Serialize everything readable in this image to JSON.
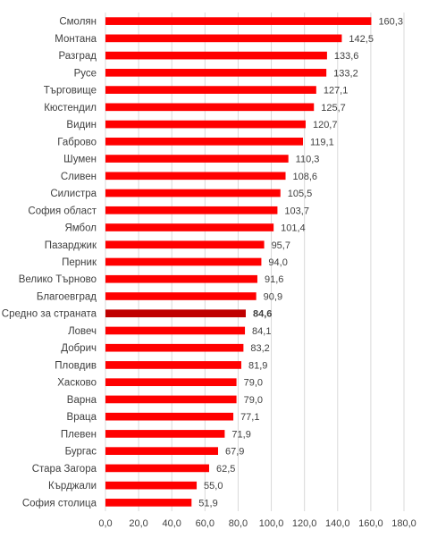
{
  "chart_data": {
    "type": "bar",
    "orientation": "horizontal",
    "categories": [
      "Смолян",
      "Монтана",
      "Разград",
      "Русе",
      "Търговище",
      "Кюстендил",
      "Видин",
      "Габрово",
      "Шумен",
      "Сливен",
      "Силистра",
      "София област",
      "Ямбол",
      "Пазарджик",
      "Перник",
      "Велико Търново",
      "Благоевград",
      "Средно за страната",
      "Ловеч",
      "Добрич",
      "Пловдив",
      "Хасково",
      "Варна",
      "Враца",
      "Плевен",
      "Бургас",
      "Стара Загора",
      "Кърджали",
      "София столица"
    ],
    "values": [
      160.3,
      142.5,
      133.6,
      133.2,
      127.1,
      125.7,
      120.7,
      119.1,
      110.3,
      108.6,
      105.5,
      103.7,
      101.4,
      95.7,
      94.0,
      91.6,
      90.9,
      84.6,
      84.1,
      83.2,
      81.9,
      79.0,
      79.0,
      77.1,
      71.9,
      67.9,
      62.5,
      55.0,
      51.9
    ],
    "value_labels": [
      "160,3",
      "142,5",
      "133,6",
      "133,2",
      "127,1",
      "125,7",
      "120,7",
      "119,1",
      "110,3",
      "108,6",
      "105,5",
      "103,7",
      "101,4",
      "95,7",
      "94,0",
      "91,6",
      "90,9",
      "84,6",
      "84,1",
      "83,2",
      "81,9",
      "79,0",
      "79,0",
      "77,1",
      "71,9",
      "67,9",
      "62,5",
      "55,0",
      "51,9"
    ],
    "highlight_category": "Средно за страната",
    "xlim": [
      0,
      180
    ],
    "x_ticks": [
      0,
      20,
      40,
      60,
      80,
      100,
      120,
      140,
      160,
      180
    ],
    "x_tick_labels": [
      "0,0",
      "20,0",
      "40,0",
      "60,0",
      "80,0",
      "100,0",
      "120,0",
      "140,0",
      "160,0",
      "180,0"
    ],
    "title": "",
    "xlabel": "",
    "ylabel": "",
    "grid": true,
    "legend": "none",
    "colors": {
      "bar": "#ff0000",
      "highlight_bar": "#c00000",
      "grid": "#d9d9d9",
      "text": "#404040"
    }
  }
}
